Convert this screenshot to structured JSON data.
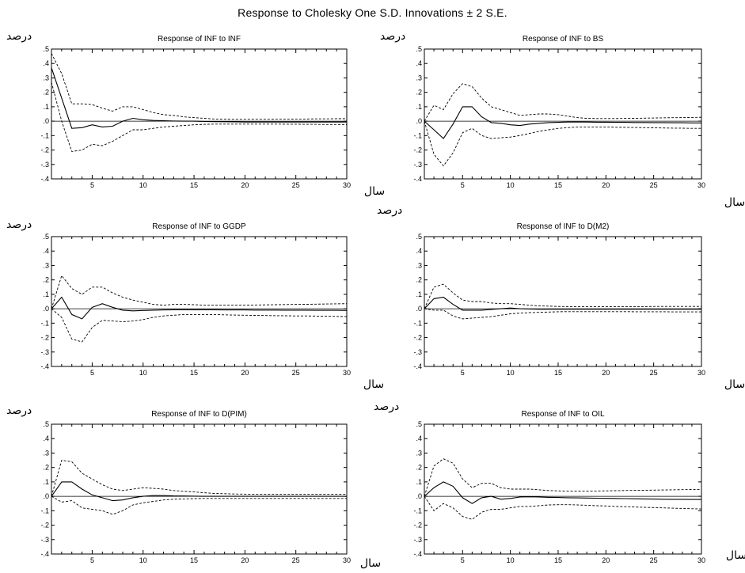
{
  "title": "Response to Cholesky One S.D. Innovations ± 2 S.E.",
  "chart_data": [
    {
      "type": "line",
      "title": "Response of INF to INF",
      "ylabel": "درصد",
      "xlabel": "سال",
      "xlim": [
        1,
        30
      ],
      "ylim": [
        -0.4,
        0.5
      ],
      "xticks": [
        5,
        10,
        15,
        20,
        25,
        30
      ],
      "yticks": [
        ".5",
        ".4",
        ".3",
        ".2",
        ".1",
        ".0",
        "-.1",
        "-.2",
        "-.3",
        "-.4"
      ],
      "x": [
        1,
        2,
        3,
        4,
        5,
        6,
        7,
        8,
        9,
        10,
        11,
        12,
        13,
        14,
        15,
        16,
        17,
        18,
        19,
        20,
        21,
        22,
        23,
        24,
        25,
        26,
        27,
        28,
        29,
        30
      ],
      "series": [
        {
          "style": "solid",
          "values": [
            0.37,
            0.16,
            -0.05,
            -0.045,
            -0.025,
            -0.04,
            -0.035,
            0.0,
            0.02,
            0.01,
            0.005,
            0.003,
            0.001,
            0.0,
            0.0,
            -0.002,
            -0.003,
            -0.004,
            -0.005,
            -0.006,
            -0.006,
            -0.006,
            -0.006,
            -0.006,
            -0.006,
            -0.006,
            -0.006,
            -0.006,
            -0.006,
            -0.006
          ]
        },
        {
          "style": "dashed",
          "values": [
            0.47,
            0.33,
            0.12,
            0.12,
            0.115,
            0.09,
            0.07,
            0.1,
            0.1,
            0.08,
            0.06,
            0.045,
            0.04,
            0.03,
            0.025,
            0.02,
            0.015,
            0.014,
            0.013,
            0.013,
            0.013,
            0.013,
            0.014,
            0.014,
            0.015,
            0.015,
            0.016,
            0.016,
            0.017,
            0.017
          ]
        },
        {
          "style": "dashed",
          "values": [
            0.27,
            0.0,
            -0.21,
            -0.2,
            -0.16,
            -0.17,
            -0.14,
            -0.1,
            -0.06,
            -0.06,
            -0.05,
            -0.04,
            -0.035,
            -0.03,
            -0.025,
            -0.022,
            -0.02,
            -0.02,
            -0.02,
            -0.02,
            -0.02,
            -0.02,
            -0.02,
            -0.021,
            -0.021,
            -0.022,
            -0.022,
            -0.023,
            -0.023,
            -0.024
          ]
        }
      ]
    },
    {
      "type": "line",
      "title": "Response of INF to BS",
      "ylabel": "درصد",
      "xlabel": "سال",
      "xlim": [
        1,
        30
      ],
      "ylim": [
        -0.4,
        0.5
      ],
      "xticks": [
        5,
        10,
        15,
        20,
        25,
        30
      ],
      "yticks": [
        ".5",
        ".4",
        ".3",
        ".2",
        ".1",
        ".0",
        "-.1",
        "-.2",
        "-.3",
        "-.4"
      ],
      "x": [
        1,
        2,
        3,
        4,
        5,
        6,
        7,
        8,
        9,
        10,
        11,
        12,
        13,
        14,
        15,
        16,
        17,
        18,
        19,
        20,
        21,
        22,
        23,
        24,
        25,
        26,
        27,
        28,
        29,
        30
      ],
      "series": [
        {
          "style": "solid",
          "values": [
            0.0,
            -0.06,
            -0.12,
            -0.02,
            0.1,
            0.1,
            0.03,
            -0.01,
            -0.015,
            -0.025,
            -0.03,
            -0.02,
            -0.015,
            -0.01,
            -0.008,
            -0.006,
            -0.006,
            -0.006,
            -0.007,
            -0.007,
            -0.008,
            -0.008,
            -0.009,
            -0.009,
            -0.01,
            -0.01,
            -0.011,
            -0.011,
            -0.012,
            -0.012
          ]
        },
        {
          "style": "dashed",
          "values": [
            0.0,
            0.11,
            0.08,
            0.19,
            0.26,
            0.24,
            0.16,
            0.1,
            0.08,
            0.06,
            0.04,
            0.045,
            0.05,
            0.05,
            0.045,
            0.035,
            0.025,
            0.02,
            0.018,
            0.018,
            0.018,
            0.019,
            0.02,
            0.021,
            0.022,
            0.023,
            0.024,
            0.025,
            0.026,
            0.027
          ]
        },
        {
          "style": "dashed",
          "values": [
            0.0,
            -0.23,
            -0.31,
            -0.22,
            -0.08,
            -0.05,
            -0.1,
            -0.12,
            -0.115,
            -0.11,
            -0.1,
            -0.085,
            -0.07,
            -0.06,
            -0.05,
            -0.045,
            -0.04,
            -0.04,
            -0.04,
            -0.04,
            -0.042,
            -0.043,
            -0.044,
            -0.045,
            -0.046,
            -0.047,
            -0.048,
            -0.049,
            -0.05,
            -0.05
          ]
        }
      ]
    },
    {
      "type": "line",
      "title": "Response of INF to GGDP",
      "ylabel": "درصد",
      "xlabel": "سال",
      "xlim": [
        1,
        30
      ],
      "ylim": [
        -0.4,
        0.5
      ],
      "xticks": [
        5,
        10,
        15,
        20,
        25,
        30
      ],
      "yticks": [
        ".5",
        ".4",
        ".3",
        ".2",
        ".1",
        ".0",
        "-.1",
        "-.2",
        "-.3",
        "-.4"
      ],
      "x": [
        1,
        2,
        3,
        4,
        5,
        6,
        7,
        8,
        9,
        10,
        11,
        12,
        13,
        14,
        15,
        16,
        17,
        18,
        19,
        20,
        21,
        22,
        23,
        24,
        25,
        26,
        27,
        28,
        29,
        30
      ],
      "series": [
        {
          "style": "solid",
          "values": [
            0.0,
            0.08,
            -0.04,
            -0.07,
            0.01,
            0.035,
            0.01,
            -0.01,
            -0.015,
            -0.012,
            -0.01,
            -0.008,
            -0.007,
            -0.007,
            -0.007,
            -0.007,
            -0.007,
            -0.008,
            -0.008,
            -0.008,
            -0.009,
            -0.009,
            -0.009,
            -0.01,
            -0.01,
            -0.01,
            -0.011,
            -0.011,
            -0.011,
            -0.012
          ]
        },
        {
          "style": "dashed",
          "values": [
            0.0,
            0.23,
            0.14,
            0.1,
            0.15,
            0.15,
            0.11,
            0.08,
            0.06,
            0.045,
            0.03,
            0.025,
            0.03,
            0.03,
            0.028,
            0.025,
            0.025,
            0.025,
            0.025,
            0.025,
            0.026,
            0.027,
            0.028,
            0.029,
            0.03,
            0.031,
            0.032,
            0.033,
            0.034,
            0.035
          ]
        },
        {
          "style": "dashed",
          "values": [
            0.0,
            -0.06,
            -0.21,
            -0.23,
            -0.13,
            -0.08,
            -0.085,
            -0.09,
            -0.085,
            -0.075,
            -0.06,
            -0.05,
            -0.045,
            -0.04,
            -0.04,
            -0.04,
            -0.04,
            -0.042,
            -0.044,
            -0.045,
            -0.046,
            -0.047,
            -0.048,
            -0.049,
            -0.05,
            -0.05,
            -0.051,
            -0.052,
            -0.053,
            -0.054
          ]
        }
      ]
    },
    {
      "type": "line",
      "title": "Response of INF to D(M2)",
      "ylabel": "درصد",
      "xlabel": "سال",
      "xlim": [
        1,
        30
      ],
      "ylim": [
        -0.4,
        0.5
      ],
      "xticks": [
        5,
        10,
        15,
        20,
        25,
        30
      ],
      "yticks": [
        ".5",
        ".4",
        ".3",
        ".2",
        ".1",
        ".0",
        "-.1",
        "-.2",
        "-.3",
        "-.4"
      ],
      "x": [
        1,
        2,
        3,
        4,
        5,
        6,
        7,
        8,
        9,
        10,
        11,
        12,
        13,
        14,
        15,
        16,
        17,
        18,
        19,
        20,
        21,
        22,
        23,
        24,
        25,
        26,
        27,
        28,
        29,
        30
      ],
      "series": [
        {
          "style": "solid",
          "values": [
            0.0,
            0.07,
            0.08,
            0.03,
            -0.01,
            -0.01,
            -0.01,
            -0.005,
            0.0,
            0.005,
            0.0,
            -0.002,
            -0.003,
            -0.003,
            -0.003,
            -0.003,
            -0.003,
            -0.003,
            -0.003,
            -0.003,
            -0.003,
            -0.003,
            -0.003,
            -0.003,
            -0.003,
            -0.003,
            -0.003,
            -0.003,
            -0.003,
            -0.003
          ]
        },
        {
          "style": "dashed",
          "values": [
            0.0,
            0.15,
            0.17,
            0.11,
            0.06,
            0.05,
            0.05,
            0.04,
            0.035,
            0.035,
            0.03,
            0.025,
            0.02,
            0.018,
            0.016,
            0.015,
            0.015,
            0.015,
            0.015,
            0.015,
            0.015,
            0.015,
            0.015,
            0.015,
            0.016,
            0.016,
            0.016,
            0.016,
            0.016,
            0.016
          ]
        },
        {
          "style": "dashed",
          "values": [
            0.0,
            -0.01,
            -0.01,
            -0.05,
            -0.07,
            -0.065,
            -0.06,
            -0.055,
            -0.045,
            -0.035,
            -0.03,
            -0.027,
            -0.025,
            -0.023,
            -0.021,
            -0.02,
            -0.02,
            -0.02,
            -0.02,
            -0.02,
            -0.02,
            -0.02,
            -0.021,
            -0.021,
            -0.021,
            -0.021,
            -0.022,
            -0.022,
            -0.022,
            -0.022
          ]
        }
      ]
    },
    {
      "type": "line",
      "title": "Response of INF to D(PIM)",
      "ylabel": "درصد",
      "xlabel": "سال",
      "xlim": [
        1,
        30
      ],
      "ylim": [
        -0.4,
        0.5
      ],
      "xticks": [
        5,
        10,
        15,
        20,
        25,
        30
      ],
      "yticks": [
        ".5",
        ".4",
        ".3",
        ".2",
        ".1",
        ".0",
        "-.1",
        "-.2",
        "-.3",
        "-.4"
      ],
      "x": [
        1,
        2,
        3,
        4,
        5,
        6,
        7,
        8,
        9,
        10,
        11,
        12,
        13,
        14,
        15,
        16,
        17,
        18,
        19,
        20,
        21,
        22,
        23,
        24,
        25,
        26,
        27,
        28,
        29,
        30
      ],
      "series": [
        {
          "style": "solid",
          "values": [
            0.0,
            0.1,
            0.1,
            0.05,
            0.01,
            -0.01,
            -0.03,
            -0.025,
            -0.01,
            0.0,
            0.005,
            0.005,
            0.003,
            0.002,
            0.001,
            0.0,
            0.0,
            0.0,
            0.0,
            0.0,
            0.0,
            0.0,
            0.0,
            0.0,
            0.0,
            0.0,
            0.0,
            0.0,
            0.0,
            0.0
          ]
        },
        {
          "style": "dashed",
          "values": [
            0.0,
            0.25,
            0.24,
            0.16,
            0.12,
            0.08,
            0.05,
            0.04,
            0.05,
            0.06,
            0.055,
            0.05,
            0.04,
            0.035,
            0.03,
            0.025,
            0.02,
            0.018,
            0.016,
            0.015,
            0.015,
            0.015,
            0.015,
            0.015,
            0.015,
            0.015,
            0.015,
            0.015,
            0.015,
            0.015
          ]
        },
        {
          "style": "dashed",
          "values": [
            0.0,
            -0.04,
            -0.03,
            -0.08,
            -0.09,
            -0.1,
            -0.125,
            -0.1,
            -0.06,
            -0.045,
            -0.035,
            -0.025,
            -0.02,
            -0.018,
            -0.016,
            -0.015,
            -0.015,
            -0.015,
            -0.015,
            -0.015,
            -0.015,
            -0.015,
            -0.015,
            -0.015,
            -0.015,
            -0.015,
            -0.015,
            -0.015,
            -0.015,
            -0.015
          ]
        }
      ]
    },
    {
      "type": "line",
      "title": "Response of INF to OIL",
      "ylabel": "درصد",
      "xlabel": "سال",
      "xlim": [
        1,
        30
      ],
      "ylim": [
        -0.4,
        0.5
      ],
      "xticks": [
        5,
        10,
        15,
        20,
        25,
        30
      ],
      "yticks": [
        ".5",
        ".4",
        ".3",
        ".2",
        ".1",
        ".0",
        "-.1",
        "-.2",
        "-.3",
        "-.4"
      ],
      "x": [
        1,
        2,
        3,
        4,
        5,
        6,
        7,
        8,
        9,
        10,
        11,
        12,
        13,
        14,
        15,
        16,
        17,
        18,
        19,
        20,
        21,
        22,
        23,
        24,
        25,
        26,
        27,
        28,
        29,
        30
      ],
      "series": [
        {
          "style": "solid",
          "values": [
            0.0,
            0.06,
            0.1,
            0.07,
            -0.01,
            -0.05,
            -0.01,
            0.0,
            -0.02,
            -0.015,
            -0.005,
            -0.003,
            -0.005,
            -0.007,
            -0.008,
            -0.01,
            -0.011,
            -0.012,
            -0.013,
            -0.014,
            -0.015,
            -0.016,
            -0.017,
            -0.018,
            -0.019,
            -0.02,
            -0.021,
            -0.021,
            -0.022,
            -0.022
          ]
        },
        {
          "style": "dashed",
          "values": [
            0.0,
            0.21,
            0.26,
            0.23,
            0.12,
            0.06,
            0.09,
            0.09,
            0.06,
            0.05,
            0.05,
            0.05,
            0.045,
            0.04,
            0.038,
            0.036,
            0.036,
            0.036,
            0.037,
            0.038,
            0.039,
            0.04,
            0.041,
            0.042,
            0.043,
            0.044,
            0.045,
            0.046,
            0.047,
            0.048
          ]
        },
        {
          "style": "dashed",
          "values": [
            0.0,
            -0.1,
            -0.05,
            -0.08,
            -0.14,
            -0.16,
            -0.11,
            -0.09,
            -0.09,
            -0.08,
            -0.07,
            -0.07,
            -0.065,
            -0.06,
            -0.058,
            -0.058,
            -0.06,
            -0.062,
            -0.065,
            -0.067,
            -0.07,
            -0.072,
            -0.074,
            -0.076,
            -0.078,
            -0.08,
            -0.082,
            -0.084,
            -0.086,
            -0.088
          ]
        }
      ]
    }
  ]
}
